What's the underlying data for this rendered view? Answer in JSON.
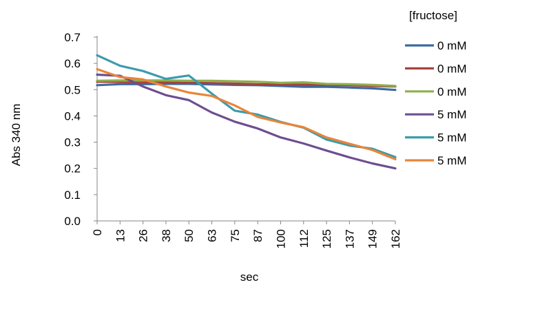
{
  "chart_data": {
    "type": "line",
    "title": "",
    "xlabel": "sec",
    "ylabel": "Abs 340 nm",
    "categories": [
      "0",
      "13",
      "26",
      "38",
      "50",
      "63",
      "75",
      "87",
      "100",
      "112",
      "125",
      "137",
      "149",
      "162"
    ],
    "ylim": [
      0,
      0.7
    ],
    "yticks": [
      "0.0",
      "0.1",
      "0.2",
      "0.3",
      "0.4",
      "0.5",
      "0.6",
      "0.7"
    ],
    "grid": false,
    "legend": {
      "title": "[fructose]",
      "position": "right"
    },
    "series": [
      {
        "name": "0 mM",
        "color": "#3c6aa0",
        "values": [
          0.517,
          0.521,
          0.521,
          0.522,
          0.522,
          0.52,
          0.518,
          0.517,
          0.514,
          0.511,
          0.511,
          0.508,
          0.505,
          0.499
        ]
      },
      {
        "name": "0 mM",
        "color": "#a5433f",
        "values": [
          0.53,
          0.529,
          0.528,
          0.527,
          0.526,
          0.525,
          0.523,
          0.521,
          0.52,
          0.519,
          0.518,
          0.517,
          0.514,
          0.512
        ]
      },
      {
        "name": "0 mM",
        "color": "#8eaf4c",
        "values": [
          0.534,
          0.535,
          0.535,
          0.535,
          0.534,
          0.534,
          0.532,
          0.53,
          0.526,
          0.528,
          0.522,
          0.521,
          0.518,
          0.514
        ]
      },
      {
        "name": "5 mM",
        "color": "#6d4e90",
        "values": [
          0.557,
          0.553,
          0.512,
          0.479,
          0.46,
          0.413,
          0.378,
          0.352,
          0.318,
          0.295,
          0.268,
          0.242,
          0.219,
          0.2
        ]
      },
      {
        "name": "5 mM",
        "color": "#3c9bac",
        "values": [
          0.631,
          0.591,
          0.571,
          0.541,
          0.554,
          0.485,
          0.42,
          0.405,
          0.377,
          0.355,
          0.31,
          0.287,
          0.275,
          0.243
        ]
      },
      {
        "name": "5 mM",
        "color": "#e8853a",
        "values": [
          0.578,
          0.548,
          0.539,
          0.512,
          0.489,
          0.476,
          0.44,
          0.396,
          0.375,
          0.357,
          0.318,
          0.294,
          0.27,
          0.235
        ]
      }
    ]
  }
}
